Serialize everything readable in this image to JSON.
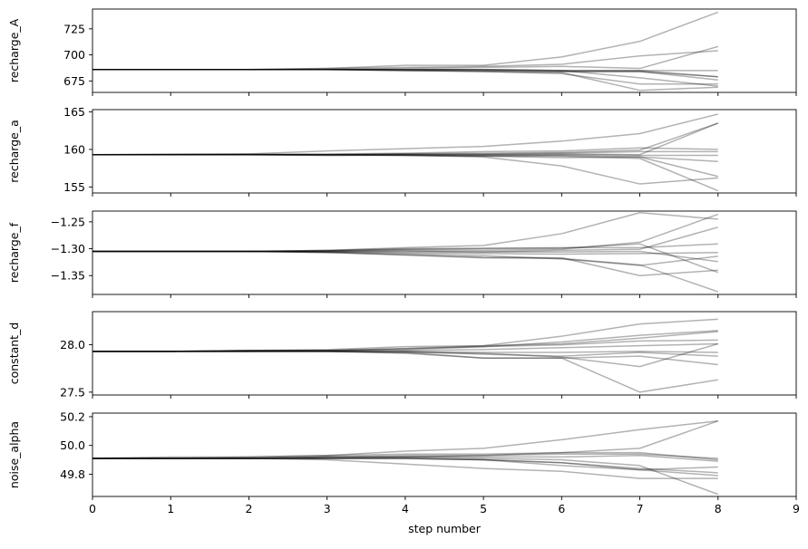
{
  "chart_data": {
    "type": "line",
    "xlabel": "step number",
    "xlim": [
      0,
      9
    ],
    "xticks": [
      0,
      1,
      2,
      3,
      4,
      5,
      6,
      7,
      8,
      9
    ],
    "x": [
      0,
      1,
      2,
      3,
      4,
      5,
      6,
      7,
      8
    ],
    "line_color": "#000000",
    "line_alpha": 0.3,
    "panels": [
      {
        "ylabel": "recharge_A",
        "ylim": [
          664,
          744
        ],
        "yticks": [
          675,
          700,
          725
        ],
        "walkers": [
          [
            686,
            686,
            686,
            687,
            690,
            690,
            698,
            713,
            741
          ],
          [
            686,
            686,
            686,
            687,
            688,
            689,
            691,
            699,
            704
          ],
          [
            686,
            686,
            686,
            686,
            687,
            688,
            689,
            687,
            708
          ],
          [
            686,
            686,
            686,
            686,
            686,
            686,
            685,
            685,
            685
          ],
          [
            686,
            686,
            686,
            686,
            686,
            686,
            685,
            685,
            679
          ],
          [
            686,
            686,
            686,
            686,
            685,
            685,
            684,
            684,
            676
          ],
          [
            686,
            686,
            686,
            686,
            686,
            686,
            685,
            678,
            670
          ],
          [
            686,
            686,
            686,
            686,
            685,
            684,
            682,
            672,
            672
          ],
          [
            686,
            686,
            686,
            686,
            685,
            684,
            683,
            666,
            669
          ],
          [
            686,
            686,
            686,
            686,
            686,
            685,
            684,
            684,
            679
          ]
        ]
      },
      {
        "ylabel": "recharge_a",
        "ylim": [
          154.2,
          165.3
        ],
        "yticks": [
          155,
          160,
          165
        ],
        "walkers": [
          [
            159.3,
            159.4,
            159.4,
            159.8,
            160.1,
            160.4,
            161.1,
            162.1,
            164.7
          ],
          [
            159.3,
            159.3,
            159.4,
            159.4,
            159.5,
            159.7,
            159.8,
            160.2,
            160.0
          ],
          [
            159.3,
            159.3,
            159.3,
            159.3,
            159.4,
            159.5,
            159.6,
            159.9,
            163.5
          ],
          [
            159.3,
            159.3,
            159.3,
            159.3,
            159.4,
            159.4,
            159.5,
            159.7,
            159.7
          ],
          [
            159.3,
            159.3,
            159.3,
            159.2,
            159.3,
            159.3,
            159.3,
            159.2,
            159.2
          ],
          [
            159.3,
            159.3,
            159.3,
            159.3,
            159.2,
            159.1,
            159.2,
            159.0,
            158.4
          ],
          [
            159.3,
            159.3,
            159.3,
            159.2,
            159.2,
            159.0,
            157.8,
            155.4,
            156.2
          ],
          [
            159.3,
            159.3,
            159.3,
            159.3,
            159.3,
            159.2,
            159.1,
            158.8,
            154.5
          ],
          [
            159.3,
            159.3,
            159.3,
            159.3,
            159.3,
            159.3,
            159.4,
            159.3,
            163.5
          ],
          [
            159.3,
            159.3,
            159.3,
            159.3,
            159.2,
            159.1,
            158.9,
            159.0,
            156.4
          ]
        ]
      },
      {
        "ylabel": "recharge_f",
        "ylim": [
          -1.385,
          -1.23
        ],
        "yticks": [
          -1.25,
          -1.3,
          -1.35
        ],
        "walkers": [
          [
            -1.305,
            -1.305,
            -1.305,
            -1.303,
            -1.298,
            -1.294,
            -1.272,
            -1.233,
            -1.245
          ],
          [
            -1.305,
            -1.305,
            -1.305,
            -1.303,
            -1.3,
            -1.299,
            -1.298,
            -1.298,
            -1.291
          ],
          [
            -1.305,
            -1.305,
            -1.305,
            -1.304,
            -1.302,
            -1.303,
            -1.301,
            -1.288,
            -1.236
          ],
          [
            -1.305,
            -1.305,
            -1.305,
            -1.305,
            -1.304,
            -1.306,
            -1.303,
            -1.301,
            -1.26
          ],
          [
            -1.305,
            -1.305,
            -1.305,
            -1.306,
            -1.307,
            -1.309,
            -1.31,
            -1.309,
            -1.307
          ],
          [
            -1.305,
            -1.305,
            -1.305,
            -1.306,
            -1.309,
            -1.313,
            -1.319,
            -1.331,
            -1.314
          ],
          [
            -1.305,
            -1.305,
            -1.305,
            -1.307,
            -1.312,
            -1.317,
            -1.318,
            -1.33,
            -1.38
          ],
          [
            -1.305,
            -1.305,
            -1.305,
            -1.307,
            -1.311,
            -1.316,
            -1.317,
            -1.35,
            -1.34
          ],
          [
            -1.305,
            -1.305,
            -1.305,
            -1.305,
            -1.305,
            -1.306,
            -1.306,
            -1.305,
            -1.324
          ],
          [
            -1.305,
            -1.305,
            -1.305,
            -1.304,
            -1.301,
            -1.3,
            -1.299,
            -1.291,
            -1.344
          ]
        ]
      },
      {
        "ylabel": "constant_d",
        "ylim": [
          27.47,
          28.35
        ],
        "yticks": [
          27.5,
          28.0
        ],
        "walkers": [
          [
            27.93,
            27.93,
            27.94,
            27.95,
            27.98,
            27.99,
            28.09,
            28.22,
            28.27
          ],
          [
            27.93,
            27.93,
            27.94,
            27.94,
            27.96,
            27.98,
            28.03,
            28.1,
            28.15
          ],
          [
            27.93,
            27.93,
            27.94,
            27.94,
            27.96,
            27.99,
            28.01,
            28.07,
            28.14
          ],
          [
            27.93,
            27.93,
            27.93,
            27.94,
            27.95,
            27.98,
            28.0,
            28.04,
            28.05
          ],
          [
            27.93,
            27.93,
            27.94,
            27.94,
            27.94,
            27.95,
            27.97,
            27.99,
            28.01
          ],
          [
            27.93,
            27.93,
            27.93,
            27.93,
            27.93,
            27.92,
            27.92,
            27.93,
            27.92
          ],
          [
            27.93,
            27.93,
            27.93,
            27.93,
            27.93,
            27.9,
            27.88,
            27.92,
            27.88
          ],
          [
            27.93,
            27.93,
            27.93,
            27.93,
            27.92,
            27.86,
            27.86,
            27.88,
            27.79
          ],
          [
            27.93,
            27.93,
            27.93,
            27.93,
            27.91,
            27.86,
            27.86,
            27.5,
            27.63
          ],
          [
            27.93,
            27.93,
            27.93,
            27.93,
            27.92,
            27.91,
            27.87,
            27.77,
            28.01
          ]
        ]
      },
      {
        "ylabel": "noise_alpha",
        "ylim": [
          49.645,
          50.225
        ],
        "yticks": [
          49.8,
          50.0,
          50.2
        ],
        "walkers": [
          [
            49.91,
            49.92,
            49.92,
            49.93,
            49.96,
            49.98,
            50.04,
            50.11,
            50.17
          ],
          [
            49.91,
            49.91,
            49.92,
            49.93,
            49.94,
            49.94,
            49.95,
            49.98,
            50.17
          ],
          [
            49.91,
            49.91,
            49.91,
            49.92,
            49.93,
            49.93,
            49.95,
            49.95,
            49.9
          ],
          [
            49.91,
            49.91,
            49.91,
            49.92,
            49.92,
            49.93,
            49.94,
            49.94,
            49.91
          ],
          [
            49.91,
            49.91,
            49.91,
            49.92,
            49.92,
            49.92,
            49.92,
            49.93,
            49.89
          ],
          [
            49.91,
            49.91,
            49.91,
            49.91,
            49.92,
            49.91,
            49.9,
            49.86,
            49.66
          ],
          [
            49.91,
            49.91,
            49.91,
            49.91,
            49.91,
            49.9,
            49.88,
            49.83,
            49.85
          ],
          [
            49.91,
            49.91,
            49.91,
            49.91,
            49.91,
            49.9,
            49.86,
            49.83,
            49.79
          ],
          [
            49.91,
            49.91,
            49.91,
            49.9,
            49.87,
            49.84,
            49.82,
            49.77,
            49.77
          ],
          [
            49.91,
            49.91,
            49.91,
            49.91,
            49.91,
            49.9,
            49.88,
            49.84,
            49.81
          ]
        ]
      }
    ]
  }
}
